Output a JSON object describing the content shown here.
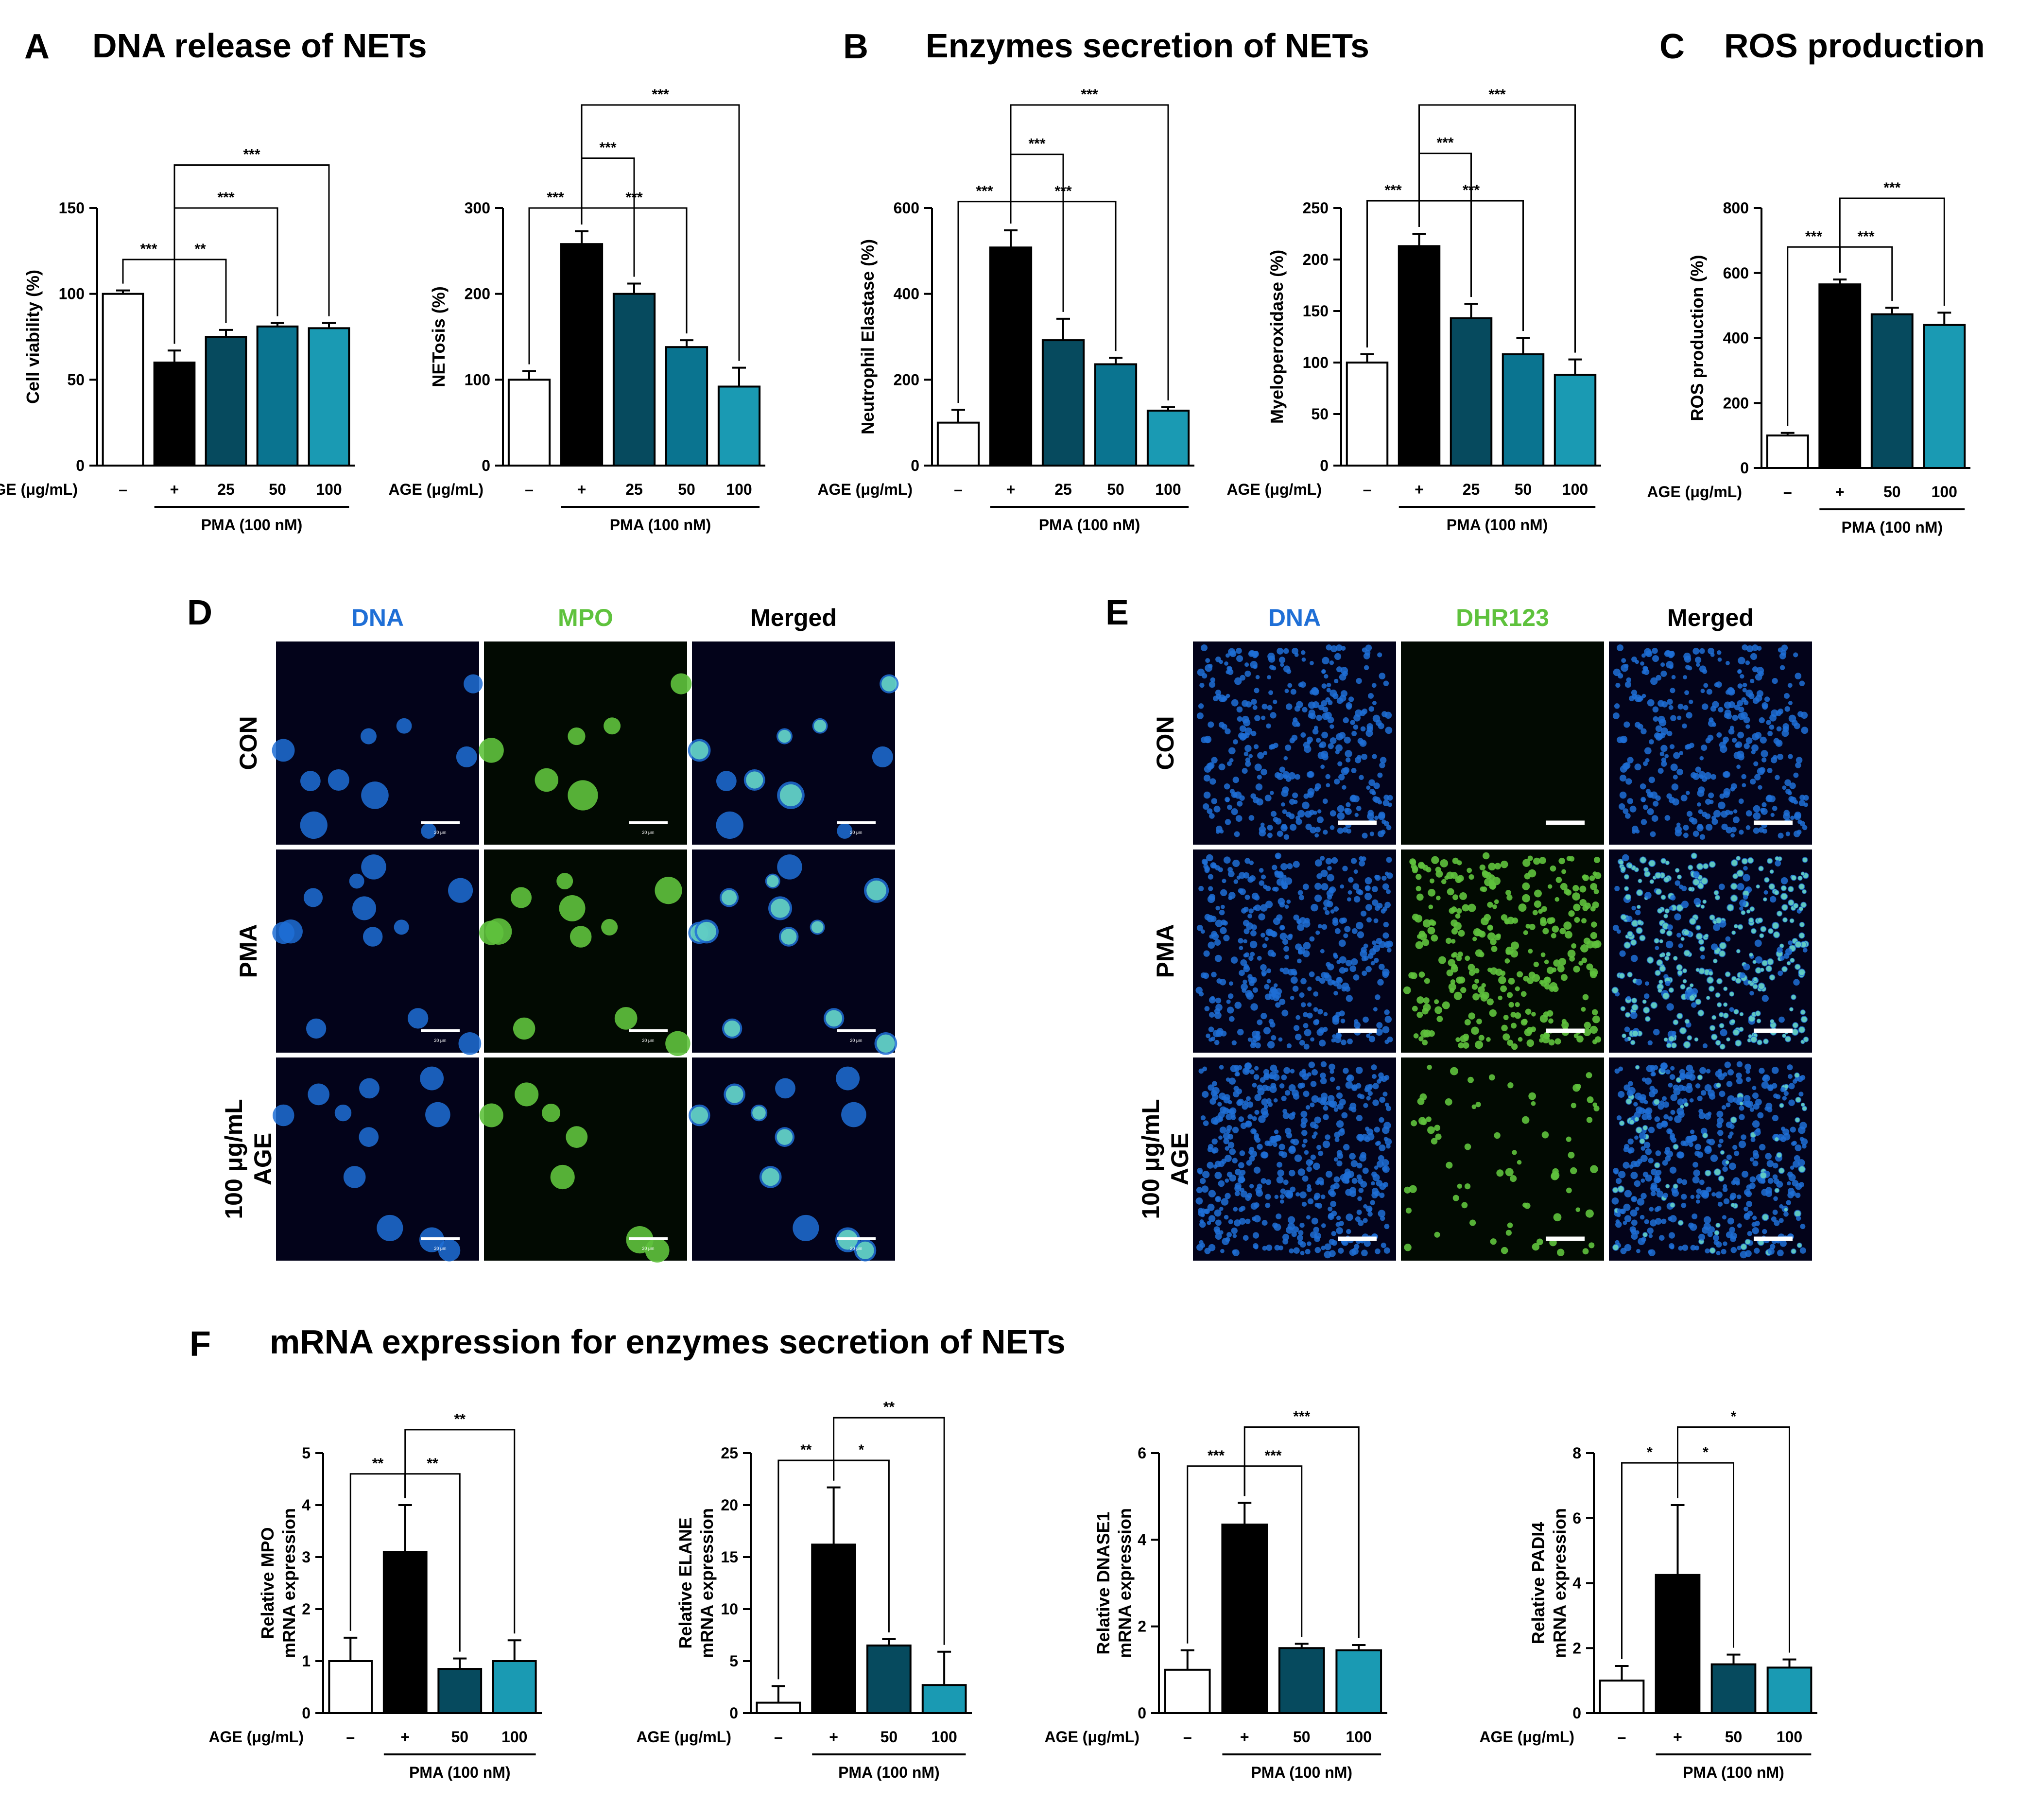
{
  "panels": {
    "A": {
      "letter": "A",
      "title": "DNA release of NETs"
    },
    "B": {
      "letter": "B",
      "title": "Enzymes secretion of NETs"
    },
    "C": {
      "letter": "C",
      "title": "ROS production"
    },
    "D": {
      "letter": "D",
      "columns": [
        "DNA",
        "MPO",
        "Merged"
      ],
      "rows": [
        "CON",
        "PMA",
        "100 μg/mL\nAGE"
      ],
      "scale_label": "20 μm"
    },
    "E": {
      "letter": "E",
      "columns": [
        "DNA",
        "DHR123",
        "Merged"
      ],
      "rows": [
        "CON",
        "PMA",
        "100 μg/mL\nAGE"
      ]
    },
    "F": {
      "letter": "F",
      "title": "mRNA expression for enzymes secretion of NETs"
    }
  },
  "colors": {
    "white": "#ffffff",
    "black": "#000000",
    "teal_dark": "#064a5e",
    "teal_mid": "#0a7490",
    "teal_light": "#1a9ab3",
    "dna_blue": "#1f6fd6",
    "green": "#5fc23d"
  },
  "chart_data": [
    {
      "id": "A1",
      "type": "bar",
      "categories": [
        "–",
        "+",
        "25",
        "50",
        "100"
      ],
      "values": [
        100,
        60,
        75,
        81,
        80
      ],
      "errors": [
        2,
        7,
        4,
        2,
        3
      ],
      "ylabel": "Cell viability (%)",
      "ylim": [
        0,
        150
      ],
      "yticks": [
        0,
        50,
        100,
        150
      ],
      "xlabel": "AGE (μg/mL)",
      "group_label": "PMA (100 nM)",
      "group_from": 1,
      "group_to": 4,
      "colors": [
        "#ffffff",
        "#000000",
        "#064a5e",
        "#0a7490",
        "#1a9ab3"
      ],
      "significance": [
        {
          "from": 0,
          "to": 1,
          "label": "***",
          "y": 120
        },
        {
          "from": 1,
          "to": 2,
          "label": "**",
          "y": 120
        },
        {
          "from": 1,
          "to": 3,
          "label": "***",
          "y": 150
        },
        {
          "from": 1,
          "to": 4,
          "label": "***",
          "y": 175
        }
      ]
    },
    {
      "id": "A2",
      "type": "bar",
      "categories": [
        "–",
        "+",
        "25",
        "50",
        "100"
      ],
      "values": [
        100,
        258,
        200,
        138,
        92
      ],
      "errors": [
        10,
        15,
        12,
        8,
        22
      ],
      "ylabel": "NETosis (%)",
      "ylim": [
        0,
        300
      ],
      "yticks": [
        0,
        100,
        200,
        300
      ],
      "xlabel": "AGE (μg/mL)",
      "group_label": "PMA (100 nM)",
      "group_from": 1,
      "group_to": 4,
      "colors": [
        "#ffffff",
        "#000000",
        "#064a5e",
        "#0a7490",
        "#1a9ab3"
      ],
      "significance": [
        {
          "from": 0,
          "to": 1,
          "label": "***",
          "y": 300
        },
        {
          "from": 1,
          "to": 3,
          "label": "***",
          "y": 300
        },
        {
          "from": 1,
          "to": 2,
          "label": "***",
          "y": 358
        },
        {
          "from": 1,
          "to": 4,
          "label": "***",
          "y": 420
        }
      ]
    },
    {
      "id": "B1",
      "type": "bar",
      "categories": [
        "–",
        "+",
        "25",
        "50",
        "100"
      ],
      "values": [
        100,
        508,
        292,
        236,
        128
      ],
      "errors": [
        30,
        40,
        50,
        15,
        8
      ],
      "ylabel": "Neutrophil Elastase (%)",
      "ylim": [
        0,
        600
      ],
      "yticks": [
        0,
        200,
        400,
        600
      ],
      "xlabel": "AGE (μg/mL)",
      "group_label": "PMA (100 nM)",
      "group_from": 1,
      "group_to": 4,
      "colors": [
        "#ffffff",
        "#000000",
        "#064a5e",
        "#0a7490",
        "#1a9ab3"
      ],
      "significance": [
        {
          "from": 0,
          "to": 1,
          "label": "***",
          "y": 615
        },
        {
          "from": 1,
          "to": 3,
          "label": "***",
          "y": 615
        },
        {
          "from": 1,
          "to": 2,
          "label": "***",
          "y": 725
        },
        {
          "from": 1,
          "to": 4,
          "label": "***",
          "y": 840
        }
      ]
    },
    {
      "id": "B2",
      "type": "bar",
      "categories": [
        "–",
        "+",
        "25",
        "50",
        "100"
      ],
      "values": [
        100,
        213,
        143,
        108,
        88
      ],
      "errors": [
        8,
        12,
        14,
        16,
        15
      ],
      "ylabel": "Myeloperoxidase (%)",
      "ylim": [
        0,
        250
      ],
      "yticks": [
        0,
        50,
        100,
        150,
        200,
        250
      ],
      "xlabel": "AGE (μg/mL)",
      "group_label": "PMA (100 nM)",
      "group_from": 1,
      "group_to": 4,
      "colors": [
        "#ffffff",
        "#000000",
        "#064a5e",
        "#0a7490",
        "#1a9ab3"
      ],
      "significance": [
        {
          "from": 0,
          "to": 1,
          "label": "***",
          "y": 257
        },
        {
          "from": 1,
          "to": 3,
          "label": "***",
          "y": 257
        },
        {
          "from": 1,
          "to": 2,
          "label": "***",
          "y": 303
        },
        {
          "from": 1,
          "to": 4,
          "label": "***",
          "y": 350
        }
      ]
    },
    {
      "id": "C1",
      "type": "bar",
      "categories": [
        "–",
        "+",
        "50",
        "100"
      ],
      "values": [
        100,
        565,
        473,
        440
      ],
      "errors": [
        8,
        15,
        20,
        38
      ],
      "ylabel": "ROS production (%)",
      "ylim": [
        0,
        800
      ],
      "yticks": [
        0,
        200,
        400,
        600,
        800
      ],
      "xlabel": "AGE (μg/mL)",
      "group_label": "PMA (100 nM)",
      "group_from": 1,
      "group_to": 3,
      "colors": [
        "#ffffff",
        "#000000",
        "#064a5e",
        "#1a9ab3"
      ],
      "significance": [
        {
          "from": 0,
          "to": 1,
          "label": "***",
          "y": 680
        },
        {
          "from": 1,
          "to": 2,
          "label": "***",
          "y": 680
        },
        {
          "from": 1,
          "to": 3,
          "label": "***",
          "y": 830
        }
      ]
    },
    {
      "id": "F1",
      "type": "bar",
      "categories": [
        "–",
        "+",
        "50",
        "100"
      ],
      "values": [
        1.0,
        3.1,
        0.85,
        1.0
      ],
      "errors": [
        0.45,
        0.9,
        0.2,
        0.4
      ],
      "ylabel": "Relative MPO\nmRNA expression",
      "ylim": [
        0,
        5
      ],
      "yticks": [
        0,
        1,
        2,
        3,
        4,
        5
      ],
      "xlabel": "AGE (μg/mL)",
      "group_label": "PMA (100 nM)",
      "group_from": 1,
      "group_to": 3,
      "colors": [
        "#ffffff",
        "#000000",
        "#064a5e",
        "#1a9ab3"
      ],
      "significance": [
        {
          "from": 0,
          "to": 1,
          "label": "**",
          "y": 4.6
        },
        {
          "from": 1,
          "to": 2,
          "label": "**",
          "y": 4.6
        },
        {
          "from": 1,
          "to": 3,
          "label": "**",
          "y": 5.45
        }
      ]
    },
    {
      "id": "F2",
      "type": "bar",
      "categories": [
        "–",
        "+",
        "50",
        "100"
      ],
      "values": [
        1.0,
        16.2,
        6.5,
        2.7
      ],
      "errors": [
        1.6,
        5.5,
        0.6,
        3.2
      ],
      "ylabel": "Relative ELANE\nmRNA expression",
      "ylim": [
        0,
        25
      ],
      "yticks": [
        0,
        5,
        10,
        15,
        20,
        25
      ],
      "xlabel": "AGE (μg/mL)",
      "group_label": "PMA (100 nM)",
      "group_from": 1,
      "group_to": 3,
      "colors": [
        "#ffffff",
        "#000000",
        "#064a5e",
        "#1a9ab3"
      ],
      "significance": [
        {
          "from": 0,
          "to": 1,
          "label": "**",
          "y": 24.3
        },
        {
          "from": 1,
          "to": 2,
          "label": "*",
          "y": 24.3
        },
        {
          "from": 1,
          "to": 3,
          "label": "**",
          "y": 28.4
        }
      ]
    },
    {
      "id": "F3",
      "type": "bar",
      "categories": [
        "–",
        "+",
        "50",
        "100"
      ],
      "values": [
        1.0,
        4.35,
        1.5,
        1.45
      ],
      "errors": [
        0.45,
        0.5,
        0.1,
        0.12
      ],
      "ylabel": "Relative DNASE1\nmRNA expression",
      "ylim": [
        0,
        6
      ],
      "yticks": [
        0,
        2,
        4,
        6
      ],
      "xlabel": "AGE (μg/mL)",
      "group_label": "PMA (100 nM)",
      "group_from": 1,
      "group_to": 3,
      "colors": [
        "#ffffff",
        "#000000",
        "#064a5e",
        "#1a9ab3"
      ],
      "significance": [
        {
          "from": 0,
          "to": 1,
          "label": "***",
          "y": 5.7
        },
        {
          "from": 1,
          "to": 2,
          "label": "***",
          "y": 5.7
        },
        {
          "from": 1,
          "to": 3,
          "label": "***",
          "y": 6.6
        }
      ]
    },
    {
      "id": "F4",
      "type": "bar",
      "categories": [
        "–",
        "+",
        "50",
        "100"
      ],
      "values": [
        1.0,
        4.25,
        1.5,
        1.4
      ],
      "errors": [
        0.45,
        2.15,
        0.3,
        0.25
      ],
      "ylabel": "Relative PADI4\nmRNA expression",
      "ylim": [
        0,
        8
      ],
      "yticks": [
        0,
        2,
        4,
        6,
        8
      ],
      "xlabel": "AGE (μg/mL)",
      "group_label": "PMA (100 nM)",
      "group_from": 1,
      "group_to": 3,
      "colors": [
        "#ffffff",
        "#000000",
        "#064a5e",
        "#1a9ab3"
      ],
      "significance": [
        {
          "from": 0,
          "to": 1,
          "label": "*",
          "y": 7.7
        },
        {
          "from": 1,
          "to": 2,
          "label": "*",
          "y": 7.7
        },
        {
          "from": 1,
          "to": 3,
          "label": "*",
          "y": 8.8
        }
      ]
    }
  ]
}
